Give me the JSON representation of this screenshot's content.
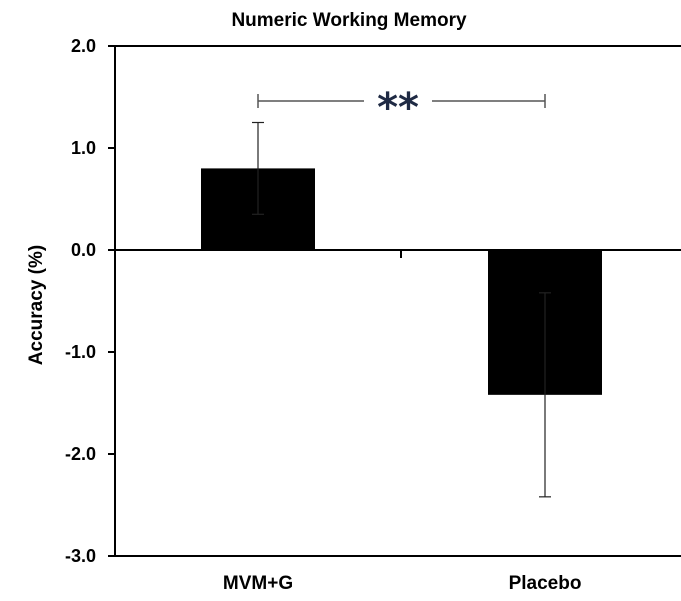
{
  "chart_data": {
    "type": "bar",
    "title": "Numeric Working Memory",
    "xlabel": "",
    "ylabel": "Accuracy (%)",
    "categories": [
      "MVM+G",
      "Placebo"
    ],
    "values": [
      0.8,
      -1.42
    ],
    "errors": [
      0.45,
      1.0
    ],
    "ylim": [
      -3.0,
      2.0
    ],
    "yticks": [
      2.0,
      1.0,
      0.0,
      -1.0,
      -2.0,
      -3.0
    ],
    "ytick_labels": [
      "2.0",
      "1.0",
      "0.0",
      "-1.0",
      "-2.0",
      "-3.0"
    ],
    "bar_color": "#000000",
    "grid": false,
    "annotations": [
      {
        "text": "**",
        "between": [
          "MVM+G",
          "Placebo"
        ]
      }
    ]
  }
}
